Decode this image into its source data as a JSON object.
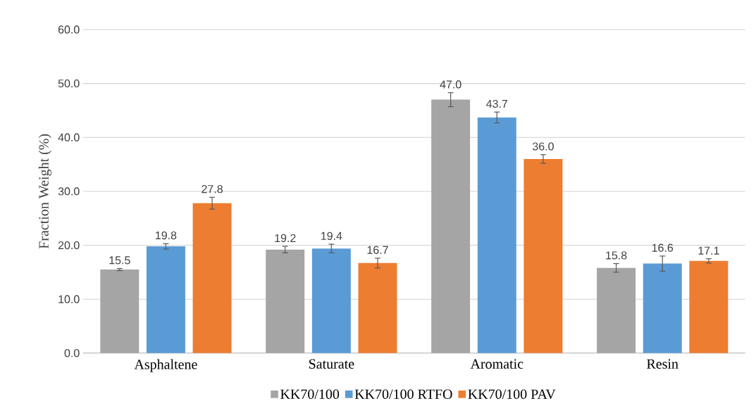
{
  "chart_data": {
    "type": "bar",
    "ylabel": "Fraction Weight (%)",
    "categories": [
      "Asphaltene",
      "Saturate",
      "Aromatic",
      "Resin"
    ],
    "series": [
      {
        "name": "KK70/100",
        "color": "#a5a5a5",
        "values": [
          15.5,
          19.2,
          47.0,
          15.8
        ],
        "value_labels": [
          "15.5",
          "19.2",
          "47.0",
          "15.8"
        ],
        "errors": [
          0.2,
          0.6,
          1.3,
          0.8
        ]
      },
      {
        "name": "KK70/100 RTFO",
        "color": "#5b9bd5",
        "values": [
          19.8,
          19.4,
          43.7,
          16.6
        ],
        "value_labels": [
          "19.8",
          "19.4",
          "43.7",
          "16.6"
        ],
        "errors": [
          0.5,
          0.8,
          1.0,
          1.4
        ]
      },
      {
        "name": "KK70/100 PAV",
        "color": "#ed7d31",
        "values": [
          27.8,
          16.7,
          36.0,
          17.1
        ],
        "value_labels": [
          "27.8",
          "16.7",
          "36.0",
          "17.1"
        ],
        "errors": [
          1.1,
          0.9,
          0.8,
          0.4
        ]
      }
    ],
    "ylim": [
      0,
      60
    ],
    "yticks": [
      {
        "value": 0,
        "label": "0.0"
      },
      {
        "value": 10,
        "label": "10.0"
      },
      {
        "value": 20,
        "label": "20.0"
      },
      {
        "value": 30,
        "label": "30.0"
      },
      {
        "value": 40,
        "label": "40.0"
      },
      {
        "value": 50,
        "label": "50.0"
      },
      {
        "value": 60,
        "label": "60.0"
      }
    ],
    "grid": "y",
    "legend": "bottom"
  }
}
